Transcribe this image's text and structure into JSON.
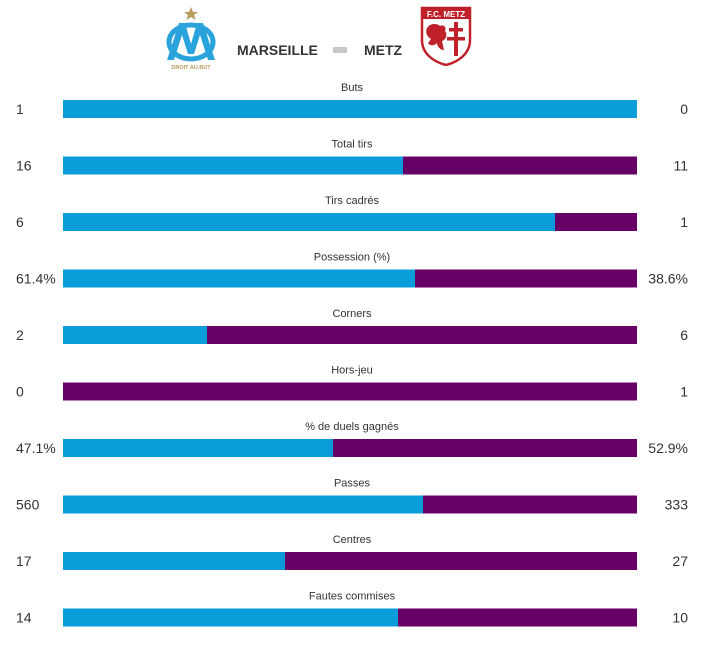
{
  "match": {
    "home_team": "MARSEILLE",
    "away_team": "METZ",
    "home_crest_text": "DROIT AU BUT",
    "away_crest_text": "F.C. METZ"
  },
  "colors": {
    "home": "#0a9dd9",
    "away": "#660066",
    "separator": "#c8c8c8"
  },
  "chart_data": {
    "type": "bar",
    "orientation": "horizontal-stacked-comparison",
    "series": [
      {
        "name": "MARSEILLE"
      },
      {
        "name": "METZ"
      }
    ],
    "rows": [
      {
        "label": "Buts",
        "home": 1,
        "away": 0,
        "home_text": "1",
        "away_text": "0"
      },
      {
        "label": "Total tirs",
        "home": 16,
        "away": 11,
        "home_text": "16",
        "away_text": "11"
      },
      {
        "label": "Tirs cadrés",
        "home": 6,
        "away": 1,
        "home_text": "6",
        "away_text": "1"
      },
      {
        "label": "Possession (%)",
        "home": 61.4,
        "away": 38.6,
        "home_text": "61.4%",
        "away_text": "38.6%"
      },
      {
        "label": "Corners",
        "home": 2,
        "away": 6,
        "home_text": "2",
        "away_text": "6"
      },
      {
        "label": "Hors-jeu",
        "home": 0,
        "away": 1,
        "home_text": "0",
        "away_text": "1"
      },
      {
        "label": "% de duels gagnés",
        "home": 47.1,
        "away": 52.9,
        "home_text": "47.1%",
        "away_text": "52.9%"
      },
      {
        "label": "Passes",
        "home": 560,
        "away": 333,
        "home_text": "560",
        "away_text": "333"
      },
      {
        "label": "Centres",
        "home": 17,
        "away": 27,
        "home_text": "17",
        "away_text": "27"
      },
      {
        "label": "Fautes commises",
        "home": 14,
        "away": 10,
        "home_text": "14",
        "away_text": "10"
      }
    ]
  }
}
